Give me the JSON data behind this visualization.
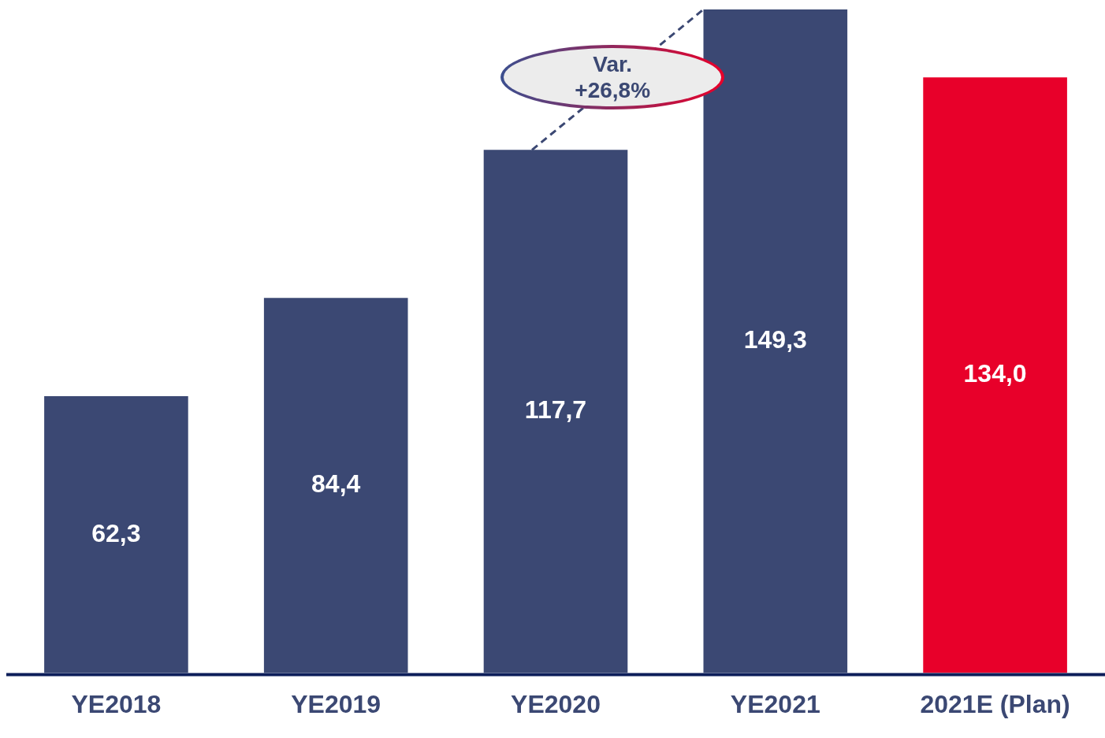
{
  "chart_data": {
    "type": "bar",
    "categories": [
      "YE2018",
      "YE2019",
      "YE2020",
      "YE2021",
      "2021E (Plan)"
    ],
    "values": [
      62.3,
      84.4,
      117.7,
      149.3,
      134.0
    ],
    "colors": [
      "#3b4873",
      "#3b4873",
      "#3b4873",
      "#3b4873",
      "#e8002a"
    ],
    "value_labels": [
      "62,3",
      "84,4",
      "117,7",
      "149,3",
      "134,0"
    ],
    "ylim": [
      0,
      150
    ],
    "annotations": [
      "Var. +26,8%"
    ],
    "legend": false,
    "grid": false
  }
}
